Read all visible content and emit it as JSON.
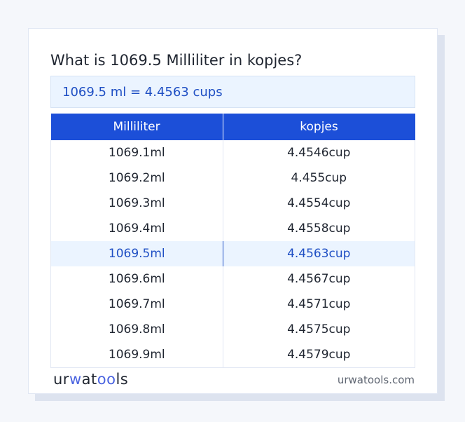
{
  "title": "What is 1069.5 Milliliter in kopjes?",
  "result": "1069.5 ml = 4.4563 cups",
  "table": {
    "headers": [
      "Milliliter",
      "kopjes"
    ],
    "rows": [
      [
        "1069.1ml",
        "4.4546cup"
      ],
      [
        "1069.2ml",
        "4.455cup"
      ],
      [
        "1069.3ml",
        "4.4554cup"
      ],
      [
        "1069.4ml",
        "4.4558cup"
      ],
      [
        "1069.5ml",
        "4.4563cup"
      ],
      [
        "1069.6ml",
        "4.4567cup"
      ],
      [
        "1069.7ml",
        "4.4571cup"
      ],
      [
        "1069.8ml",
        "4.4575cup"
      ],
      [
        "1069.9ml",
        "4.4579cup"
      ]
    ],
    "highlighted_row": 4
  },
  "footer": {
    "logo": "urwatools",
    "logo_parts": [
      "ur",
      "w",
      "at",
      "oo",
      "ls"
    ],
    "site": "urwatools.com"
  },
  "colors": {
    "accent": "#1c4fd8",
    "highlight_bg": "#ebf4ff"
  }
}
